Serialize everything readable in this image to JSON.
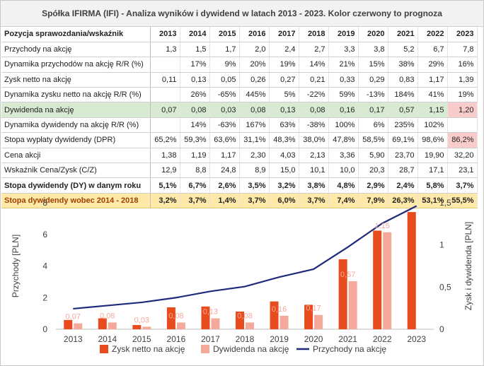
{
  "title": "Spółka IFIRMA (IFI) - Analiza wyników i dywidend w latach 2013 - 2023. Kolor czerwony to prognoza",
  "table": {
    "header_label": "Pozycja sprawozdania/wskaźnik",
    "years": [
      "2013",
      "2014",
      "2015",
      "2016",
      "2017",
      "2018",
      "2019",
      "2020",
      "2021",
      "2022",
      "2023"
    ],
    "rows": [
      {
        "label": "Przychody na akcję",
        "cells": [
          "1,3",
          "1,5",
          "1,7",
          "2,0",
          "2,4",
          "2,7",
          "3,3",
          "3,8",
          "5,2",
          "6,7",
          "7,8"
        ]
      },
      {
        "label": "Dynamika przychodów na akcję R/R (%)",
        "cells": [
          "",
          "17%",
          "9%",
          "20%",
          "19%",
          "14%",
          "21%",
          "15%",
          "38%",
          "29%",
          "16%"
        ]
      },
      {
        "label": "Zysk netto na akcję",
        "cells": [
          "0,11",
          "0,13",
          "0,05",
          "0,26",
          "0,27",
          "0,21",
          "0,33",
          "0,29",
          "0,83",
          "1,17",
          "1,39"
        ]
      },
      {
        "label": "Dynamika zysku netto na akcję R/R (%)",
        "cells": [
          "",
          "26%",
          "-65%",
          "445%",
          "5%",
          "-22%",
          "59%",
          "-13%",
          "184%",
          "41%",
          "19%"
        ]
      },
      {
        "label": "Dywidenda na akcję",
        "cells": [
          "0,07",
          "0,08",
          "0,03",
          "0,08",
          "0,13",
          "0,08",
          "0,16",
          "0,17",
          "0,57",
          "1,15",
          "1,20"
        ]
      },
      {
        "label": "Dynamika dywidendy na akcję R/R (%)",
        "cells": [
          "",
          "14%",
          "-63%",
          "167%",
          "63%",
          "-38%",
          "100%",
          "6%",
          "235%",
          "102%",
          ""
        ]
      },
      {
        "label": "Stopa wypłaty dywidendy (DPR)",
        "cells": [
          "65,2%",
          "59,3%",
          "63,6%",
          "31,1%",
          "48,3%",
          "38,0%",
          "47,8%",
          "58,5%",
          "69,1%",
          "98,6%",
          "86,2%"
        ]
      },
      {
        "label": "Cena akcji",
        "cells": [
          "1,38",
          "1,19",
          "1,17",
          "2,30",
          "4,03",
          "2,13",
          "3,36",
          "5,90",
          "23,70",
          "19,90",
          "32,20"
        ]
      },
      {
        "label": "Wskaźnik Cena/Zysk (C/Z)",
        "cells": [
          "12,9",
          "8,8",
          "24,8",
          "8,9",
          "15,0",
          "10,1",
          "10,0",
          "20,3",
          "28,7",
          "17,1",
          "23,1"
        ]
      },
      {
        "label": "Stopa dywidendy (DY) w danym roku",
        "cells": [
          "5,1%",
          "6,7%",
          "2,6%",
          "3,5%",
          "3,2%",
          "3,8%",
          "4,8%",
          "2,9%",
          "2,4%",
          "5,8%",
          "3,7%"
        ]
      },
      {
        "label": "Stopa dywidendy wobec 2014 - 2018",
        "cells": [
          "3,2%",
          "3,7%",
          "1,4%",
          "3,7%",
          "6,0%",
          "3,7%",
          "7,4%",
          "7,9%",
          "26,3%",
          "53,1%",
          "55,5%"
        ]
      }
    ]
  },
  "chart_data": {
    "type": "bar",
    "categories": [
      "2013",
      "2014",
      "2015",
      "2016",
      "2017",
      "2018",
      "2019",
      "2020",
      "2021",
      "2022",
      "2023"
    ],
    "ylabel_left": "Przychody [PLN]",
    "ylabel_right": "Zysk i dywidenda [PLN]",
    "ylim_left": [
      0,
      8
    ],
    "yticks_left": [
      "0",
      "2",
      "4",
      "6",
      "8"
    ],
    "ylim_right": [
      0,
      1.5
    ],
    "yticks_right": [
      "0",
      "0,5",
      "1",
      "1,5"
    ],
    "series": [
      {
        "name": "Zysk netto na akcję",
        "kind": "bar",
        "axis": "right",
        "color": "#e84c1e",
        "values": [
          0.11,
          0.13,
          0.05,
          0.26,
          0.27,
          0.21,
          0.33,
          0.29,
          0.83,
          1.17,
          1.39
        ]
      },
      {
        "name": "Dywidenda na akcję",
        "kind": "bar",
        "axis": "right",
        "color": "#f4a99a",
        "values": [
          0.07,
          0.08,
          0.03,
          0.08,
          0.13,
          0.08,
          0.16,
          0.17,
          0.57,
          1.15,
          null
        ]
      },
      {
        "name": "Przychody na akcję",
        "kind": "line",
        "axis": "left",
        "color": "#1f2a7a",
        "values": [
          1.3,
          1.5,
          1.7,
          2.0,
          2.4,
          2.7,
          3.3,
          3.8,
          5.2,
          6.7,
          7.8
        ]
      }
    ],
    "data_labels": [
      "0,07",
      "0,08",
      "0,03",
      "0,08",
      "0,13",
      "0,08",
      "0,16",
      "0,17",
      "0,57",
      "1,15"
    ],
    "legend_placement": "bottom",
    "grid": false
  },
  "colors": {
    "label_color": "#f4a99a",
    "forecast_fill": "#f9cccc",
    "highlight_row": "#d9ead3",
    "gold_row": "#ffe9a8"
  }
}
